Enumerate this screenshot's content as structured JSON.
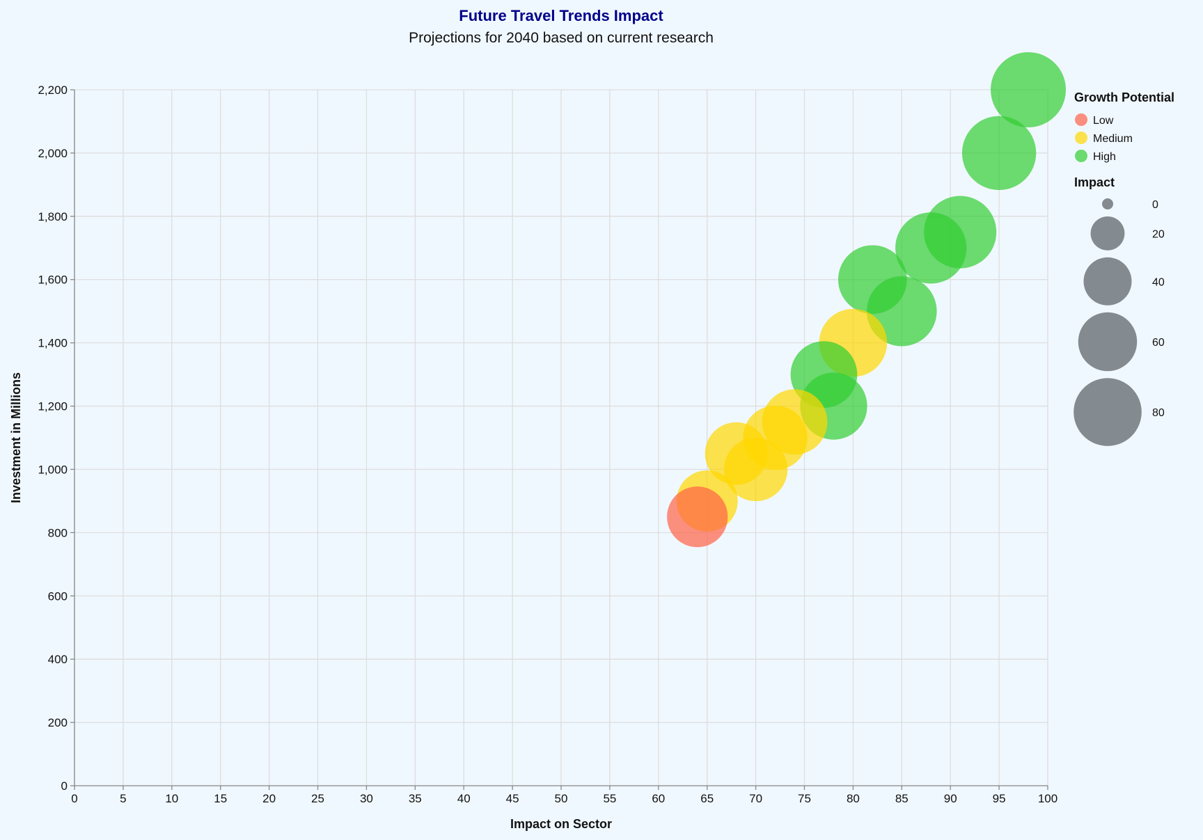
{
  "chart_data": {
    "type": "scatter",
    "title": "Future Travel Trends Impact",
    "subtitle": "Projections for 2040 based on current research",
    "xlabel": "Impact on Sector",
    "ylabel": "Investment in Millions",
    "xlim": [
      0,
      100
    ],
    "ylim": [
      0,
      2200
    ],
    "x_ticks": [
      0,
      5,
      10,
      15,
      20,
      25,
      30,
      35,
      40,
      45,
      50,
      55,
      60,
      65,
      70,
      75,
      80,
      85,
      90,
      95,
      100
    ],
    "y_ticks": [
      0,
      200,
      400,
      600,
      800,
      1000,
      1200,
      1400,
      1600,
      1800,
      2000,
      2200
    ],
    "grid": true,
    "encoding": {
      "size": "Impact",
      "color": "Growth Potential"
    },
    "color_legend": {
      "title": "Growth Potential",
      "placement": "top-right",
      "entries": [
        {
          "label": "Low",
          "color": "#ff6347"
        },
        {
          "label": "Medium",
          "color": "#ffd700"
        },
        {
          "label": "High",
          "color": "#32cd32"
        }
      ]
    },
    "size_legend": {
      "title": "Impact",
      "placement": "right",
      "values": [
        0,
        20,
        40,
        60,
        80
      ]
    },
    "size_domain_max": 98,
    "point_opacity": 0.7,
    "points": [
      {
        "x": 98,
        "y": 2200,
        "growth": "High"
      },
      {
        "x": 95,
        "y": 2000,
        "growth": "High"
      },
      {
        "x": 91,
        "y": 1750,
        "growth": "High"
      },
      {
        "x": 88,
        "y": 1700,
        "growth": "High"
      },
      {
        "x": 82,
        "y": 1600,
        "growth": "High"
      },
      {
        "x": 85,
        "y": 1500,
        "growth": "High"
      },
      {
        "x": 80,
        "y": 1400,
        "growth": "Medium"
      },
      {
        "x": 77,
        "y": 1300,
        "growth": "High"
      },
      {
        "x": 78,
        "y": 1200,
        "growth": "High"
      },
      {
        "x": 74,
        "y": 1150,
        "growth": "Medium"
      },
      {
        "x": 72,
        "y": 1100,
        "growth": "Medium"
      },
      {
        "x": 68,
        "y": 1050,
        "growth": "Medium"
      },
      {
        "x": 70,
        "y": 1000,
        "growth": "Medium"
      },
      {
        "x": 65,
        "y": 900,
        "growth": "Medium"
      },
      {
        "x": 64,
        "y": 850,
        "growth": "Low"
      }
    ]
  }
}
